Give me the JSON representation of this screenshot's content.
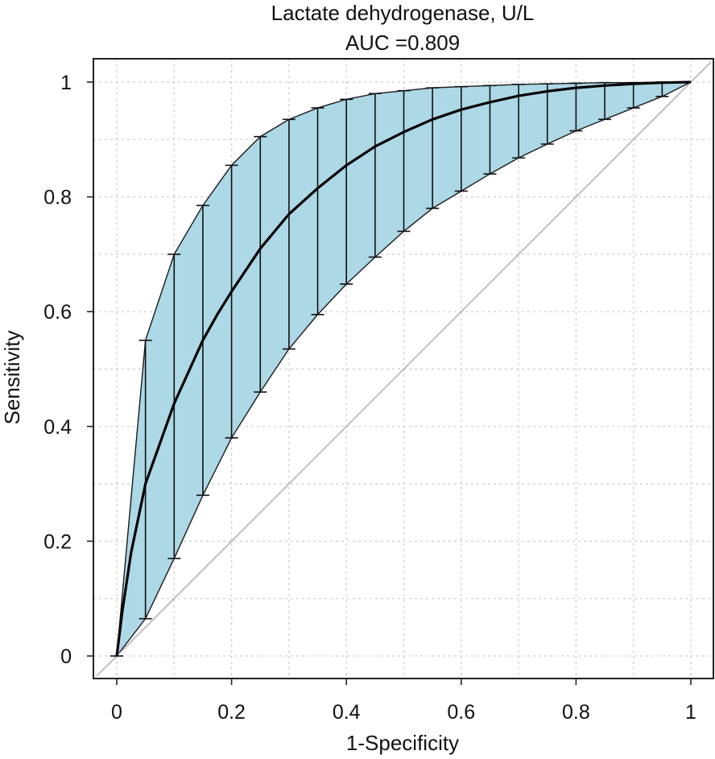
{
  "chart_data": {
    "type": "line",
    "title": "Lactate dehydrogenase, U/L",
    "subtitle": "AUC =0.809",
    "xlabel": "1-Specificity",
    "ylabel": "Sensitivity",
    "xlim": [
      0,
      1
    ],
    "ylim": [
      0,
      1
    ],
    "x_ticks": [
      0,
      0.2,
      0.4,
      0.6,
      0.8,
      1
    ],
    "x_tick_labels": [
      "0",
      "0.2",
      "0.4",
      "0.6",
      "0.8",
      "1"
    ],
    "y_ticks": [
      0,
      0.2,
      0.4,
      0.6,
      0.8,
      1
    ],
    "y_tick_labels": [
      "0",
      "0.2",
      "0.4",
      "0.6",
      "0.8",
      "1"
    ],
    "grid": true,
    "colors": {
      "band": "#add8e6",
      "curve": "#000000",
      "diagonal": "#aaaaaa",
      "grid": "#cccccc"
    },
    "confidence_band": {
      "x": [
        0,
        0.05,
        0.1,
        0.15,
        0.2,
        0.25,
        0.3,
        0.35,
        0.4,
        0.45,
        0.5,
        0.55,
        0.6,
        0.65,
        0.7,
        0.75,
        0.8,
        0.85,
        0.9,
        0.95,
        1.0
      ],
      "upper": [
        0,
        0.55,
        0.7,
        0.785,
        0.855,
        0.905,
        0.935,
        0.955,
        0.97,
        0.98,
        0.985,
        0.99,
        0.992,
        0.994,
        0.996,
        0.997,
        0.998,
        0.999,
        0.999,
        1.0,
        1.0
      ],
      "lower": [
        0,
        0.065,
        0.17,
        0.28,
        0.38,
        0.46,
        0.535,
        0.595,
        0.648,
        0.695,
        0.74,
        0.78,
        0.81,
        0.84,
        0.868,
        0.892,
        0.915,
        0.935,
        0.955,
        0.975,
        1.0
      ]
    },
    "series": [
      {
        "x": [
          0,
          0.01,
          0.025,
          0.05,
          0.075,
          0.1,
          0.125,
          0.15,
          0.175,
          0.2,
          0.25,
          0.3,
          0.35,
          0.4,
          0.45,
          0.5,
          0.55,
          0.6,
          0.65,
          0.7,
          0.75,
          0.8,
          0.85,
          0.9,
          0.95,
          1.0
        ],
        "y": [
          0,
          0.08,
          0.18,
          0.3,
          0.37,
          0.44,
          0.495,
          0.55,
          0.595,
          0.635,
          0.71,
          0.77,
          0.815,
          0.855,
          0.888,
          0.913,
          0.935,
          0.952,
          0.965,
          0.976,
          0.984,
          0.99,
          0.994,
          0.997,
          0.999,
          1.0
        ]
      }
    ],
    "reference_line": {
      "x": [
        0,
        1
      ],
      "y": [
        0,
        1
      ]
    }
  }
}
